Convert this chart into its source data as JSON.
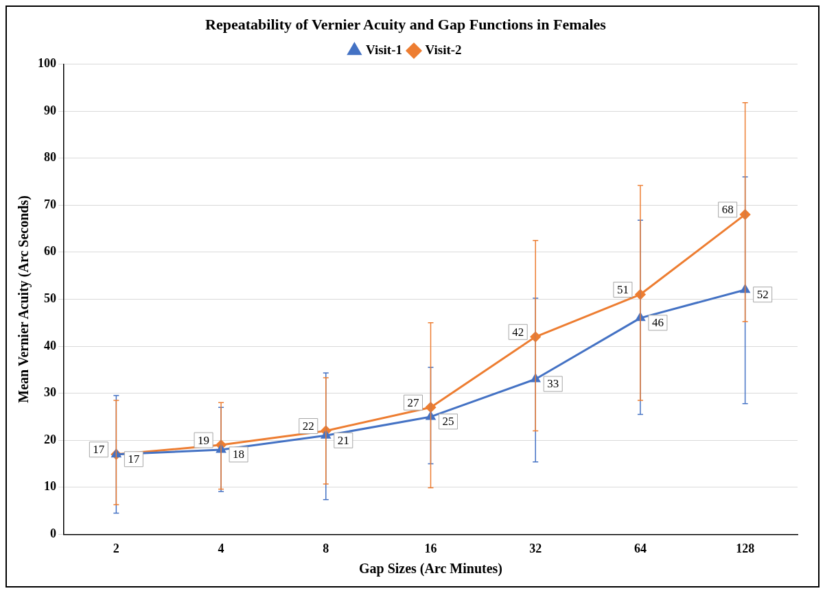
{
  "chart_data": {
    "type": "line",
    "title": "Repeatability of Vernier Acuity and Gap Functions in Females",
    "xlabel": "Gap Sizes (Arc Minutes)",
    "ylabel": "Mean Vernier Acuity (Arc Seconds)",
    "categories": [
      "2",
      "4",
      "8",
      "16",
      "32",
      "64",
      "128"
    ],
    "series": [
      {
        "name": "Visit-1",
        "color": "#4472c4",
        "marker": "triangle",
        "values": [
          17,
          18,
          21,
          25,
          33,
          46,
          52
        ],
        "errors": [
          [
            4.5,
            29.5
          ],
          [
            9.1,
            27
          ],
          [
            7.4,
            34.3
          ],
          [
            15,
            35.5
          ],
          [
            15.4,
            50.2
          ],
          [
            25.5,
            66.8
          ],
          [
            27.8,
            76
          ]
        ]
      },
      {
        "name": "Visit-2",
        "color": "#ed7d31",
        "marker": "diamond",
        "values": [
          17,
          19,
          22,
          27,
          42,
          51,
          68
        ],
        "errors": [
          [
            6.3,
            28.5
          ],
          [
            9.6,
            28
          ],
          [
            10.7,
            33.3
          ],
          [
            9.9,
            45
          ],
          [
            22,
            62.5
          ],
          [
            28.5,
            74.2
          ],
          [
            45.2,
            91.8
          ]
        ]
      }
    ],
    "ylim": [
      0,
      100
    ],
    "yticks": [
      0,
      10,
      20,
      30,
      40,
      50,
      60,
      70,
      80,
      90,
      100
    ],
    "grid": "y",
    "legend": "top",
    "data_labels": true
  }
}
